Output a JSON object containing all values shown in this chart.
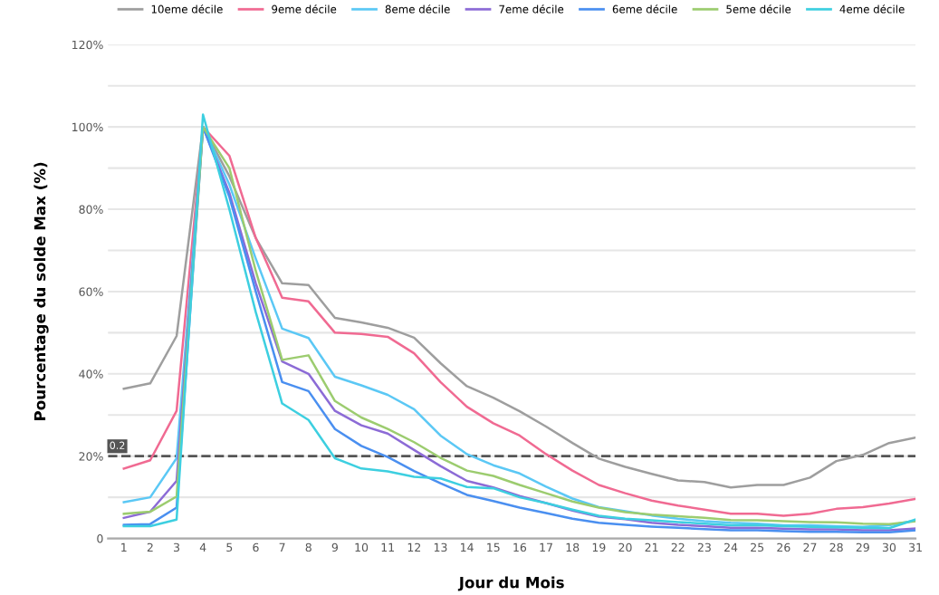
{
  "chart_data": {
    "type": "line",
    "xlabel": "Jour du Mois",
    "ylabel": "Pourcentage du solde Max (%)",
    "categories": [
      "1",
      "2",
      "3",
      "4",
      "5",
      "6",
      "7",
      "8",
      "9",
      "10",
      "11",
      "12",
      "13",
      "14",
      "15",
      "16",
      "17",
      "18",
      "19",
      "20",
      "21",
      "22",
      "23",
      "24",
      "25",
      "26",
      "27",
      "28",
      "29",
      "30",
      "31"
    ],
    "series": [
      {
        "name": "10eme décile",
        "color": "#9e9e9e",
        "values": [
          0.364,
          0.377,
          0.492,
          1.0,
          0.88,
          0.73,
          0.62,
          0.616,
          0.536,
          0.525,
          0.512,
          0.488,
          0.426,
          0.37,
          0.342,
          0.309,
          0.272,
          0.232,
          0.194,
          0.174,
          0.157,
          0.141,
          0.137,
          0.124,
          0.13,
          0.13,
          0.148,
          0.188,
          0.203,
          0.232,
          0.245
        ]
      },
      {
        "name": "9eme décile",
        "color": "#f06a92",
        "values": [
          0.17,
          0.19,
          0.31,
          1.0,
          0.93,
          0.73,
          0.585,
          0.576,
          0.5,
          0.497,
          0.49,
          0.45,
          0.38,
          0.32,
          0.28,
          0.25,
          0.205,
          0.165,
          0.13,
          0.11,
          0.092,
          0.08,
          0.07,
          0.06,
          0.06,
          0.055,
          0.06,
          0.072,
          0.076,
          0.085,
          0.096
        ]
      },
      {
        "name": "8eme décile",
        "color": "#5bc8f5",
        "values": [
          0.088,
          0.1,
          0.195,
          1.0,
          0.86,
          0.68,
          0.51,
          0.487,
          0.393,
          0.372,
          0.349,
          0.314,
          0.25,
          0.205,
          0.178,
          0.158,
          0.126,
          0.097,
          0.076,
          0.066,
          0.056,
          0.048,
          0.042,
          0.038,
          0.036,
          0.032,
          0.032,
          0.03,
          0.028,
          0.032,
          0.044
        ]
      },
      {
        "name": "7eme décile",
        "color": "#8c6bd6",
        "values": [
          0.05,
          0.065,
          0.14,
          1.0,
          0.84,
          0.62,
          0.43,
          0.4,
          0.31,
          0.275,
          0.255,
          0.215,
          0.176,
          0.14,
          0.124,
          0.103,
          0.086,
          0.068,
          0.053,
          0.047,
          0.038,
          0.033,
          0.03,
          0.026,
          0.026,
          0.024,
          0.022,
          0.022,
          0.02,
          0.02,
          0.024
        ]
      },
      {
        "name": "6eme décile",
        "color": "#4a8ff0",
        "values": [
          0.033,
          0.035,
          0.075,
          1.0,
          0.83,
          0.6,
          0.38,
          0.358,
          0.266,
          0.225,
          0.198,
          0.164,
          0.134,
          0.106,
          0.091,
          0.075,
          0.062,
          0.048,
          0.038,
          0.033,
          0.029,
          0.026,
          0.023,
          0.02,
          0.02,
          0.018,
          0.016,
          0.016,
          0.015,
          0.015,
          0.02
        ]
      },
      {
        "name": "5eme décile",
        "color": "#9ccc6f",
        "values": [
          0.06,
          0.065,
          0.102,
          1.0,
          0.9,
          0.65,
          0.434,
          0.445,
          0.334,
          0.294,
          0.266,
          0.234,
          0.196,
          0.165,
          0.152,
          0.13,
          0.11,
          0.09,
          0.075,
          0.064,
          0.058,
          0.054,
          0.05,
          0.045,
          0.044,
          0.042,
          0.04,
          0.039,
          0.036,
          0.035,
          0.042
        ]
      },
      {
        "name": "4eme décile",
        "color": "#3dcfe0",
        "values": [
          0.03,
          0.03,
          0.046,
          1.03,
          0.8,
          0.55,
          0.328,
          0.288,
          0.195,
          0.17,
          0.163,
          0.15,
          0.146,
          0.125,
          0.122,
          0.1,
          0.086,
          0.07,
          0.055,
          0.048,
          0.044,
          0.04,
          0.036,
          0.032,
          0.032,
          0.03,
          0.028,
          0.027,
          0.026,
          0.025,
          0.046
        ]
      }
    ],
    "ylim": [
      0,
      1.2
    ],
    "yticks": [
      {
        "value": 0,
        "label": "0"
      },
      {
        "value": 0.1,
        "label": null
      },
      {
        "value": 0.2,
        "label": "20%"
      },
      {
        "value": 0.3,
        "label": null
      },
      {
        "value": 0.4,
        "label": "40%"
      },
      {
        "value": 0.5,
        "label": null
      },
      {
        "value": 0.6,
        "label": "60%"
      },
      {
        "value": 0.7,
        "label": null
      },
      {
        "value": 0.8,
        "label": "80%"
      },
      {
        "value": 0.9,
        "label": null
      },
      {
        "value": 1.0,
        "label": "100%"
      },
      {
        "value": 1.1,
        "label": null
      },
      {
        "value": 1.2,
        "label": "120%"
      }
    ],
    "ref_lines": [
      {
        "axis": "y",
        "value": 0.2,
        "label": "0.2",
        "color": "#555555",
        "line_style": "dashed"
      }
    ],
    "grid": "y",
    "legend": "top",
    "marker": "none",
    "line_style": "solid"
  }
}
